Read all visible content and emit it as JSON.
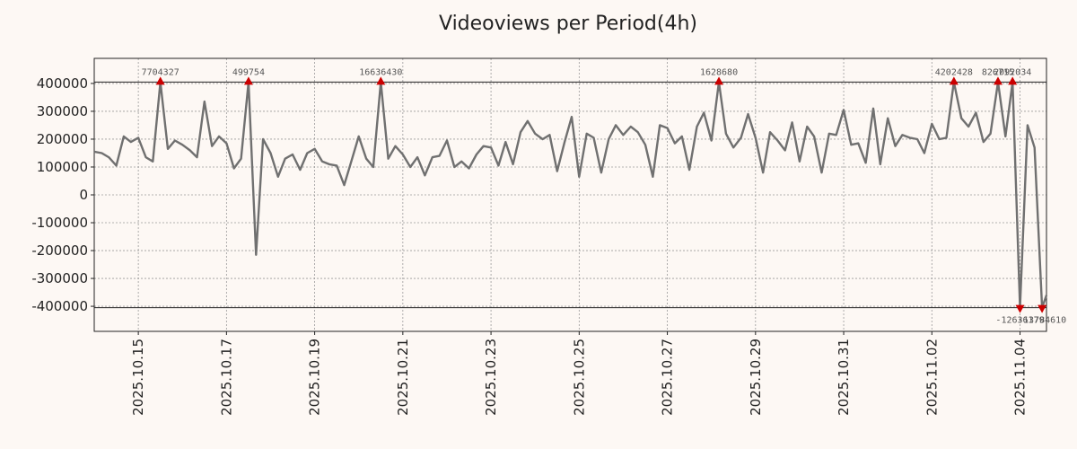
{
  "chart_data": {
    "type": "line",
    "title": "Videoviews per Period(4h)",
    "xlabel": "",
    "ylabel": "",
    "grid": true,
    "xlim": [
      0,
      21.6
    ],
    "ylim": [
      -490000,
      490000
    ],
    "threshold_lines": [
      405000,
      -405000
    ],
    "x_ticks": [
      {
        "x": 1,
        "label": "2025.10.15"
      },
      {
        "x": 3,
        "label": "2025.10.17"
      },
      {
        "x": 5,
        "label": "2025.10.19"
      },
      {
        "x": 7,
        "label": "2025.10.21"
      },
      {
        "x": 9,
        "label": "2025.10.23"
      },
      {
        "x": 11,
        "label": "2025.10.25"
      },
      {
        "x": 13,
        "label": "2025.10.27"
      },
      {
        "x": 15,
        "label": "2025.10.29"
      },
      {
        "x": 17,
        "label": "2025.10.31"
      },
      {
        "x": 19,
        "label": "2025.11.02"
      },
      {
        "x": 21,
        "label": "2025.11.04"
      }
    ],
    "y_ticks": [
      {
        "y": 400000,
        "label": "400000"
      },
      {
        "y": 300000,
        "label": "300000"
      },
      {
        "y": 200000,
        "label": "200000"
      },
      {
        "y": 100000,
        "label": "100000"
      },
      {
        "y": 0,
        "label": "0"
      },
      {
        "y": -100000,
        "label": "-100000"
      },
      {
        "y": -200000,
        "label": "-200000"
      },
      {
        "y": -300000,
        "label": "-300000"
      },
      {
        "y": -400000,
        "label": "-400000"
      }
    ],
    "series": [
      {
        "name": "Videoviews",
        "color": "#707070",
        "points": [
          [
            0.0,
            155000
          ],
          [
            0.17,
            150000
          ],
          [
            0.33,
            135000
          ],
          [
            0.5,
            105000
          ],
          [
            0.67,
            210000
          ],
          [
            0.83,
            190000
          ],
          [
            1.0,
            205000
          ],
          [
            1.17,
            135000
          ],
          [
            1.33,
            120000
          ],
          [
            1.5,
            405000
          ],
          [
            1.67,
            165000
          ],
          [
            1.83,
            195000
          ],
          [
            2.0,
            180000
          ],
          [
            2.17,
            160000
          ],
          [
            2.33,
            135000
          ],
          [
            2.5,
            335000
          ],
          [
            2.67,
            175000
          ],
          [
            2.83,
            210000
          ],
          [
            3.0,
            185000
          ],
          [
            3.17,
            95000
          ],
          [
            3.33,
            130000
          ],
          [
            3.5,
            405000
          ],
          [
            3.67,
            -215000
          ],
          [
            3.83,
            200000
          ],
          [
            4.0,
            150000
          ],
          [
            4.17,
            65000
          ],
          [
            4.33,
            130000
          ],
          [
            4.5,
            145000
          ],
          [
            4.67,
            90000
          ],
          [
            4.83,
            150000
          ],
          [
            5.0,
            165000
          ],
          [
            5.17,
            120000
          ],
          [
            5.33,
            110000
          ],
          [
            5.5,
            105000
          ],
          [
            5.67,
            35000
          ],
          [
            5.83,
            120000
          ],
          [
            6.0,
            210000
          ],
          [
            6.17,
            130000
          ],
          [
            6.33,
            100000
          ],
          [
            6.5,
            405000
          ],
          [
            6.67,
            130000
          ],
          [
            6.83,
            175000
          ],
          [
            7.0,
            145000
          ],
          [
            7.17,
            100000
          ],
          [
            7.33,
            135000
          ],
          [
            7.5,
            70000
          ],
          [
            7.67,
            135000
          ],
          [
            7.83,
            140000
          ],
          [
            8.0,
            195000
          ],
          [
            8.17,
            100000
          ],
          [
            8.33,
            120000
          ],
          [
            8.5,
            95000
          ],
          [
            8.67,
            145000
          ],
          [
            8.83,
            175000
          ],
          [
            9.0,
            170000
          ],
          [
            9.17,
            105000
          ],
          [
            9.33,
            190000
          ],
          [
            9.5,
            110000
          ],
          [
            9.67,
            225000
          ],
          [
            9.83,
            265000
          ],
          [
            10.0,
            220000
          ],
          [
            10.17,
            200000
          ],
          [
            10.33,
            215000
          ],
          [
            10.5,
            85000
          ],
          [
            10.67,
            190000
          ],
          [
            10.83,
            280000
          ],
          [
            11.0,
            65000
          ],
          [
            11.17,
            220000
          ],
          [
            11.33,
            205000
          ],
          [
            11.5,
            80000
          ],
          [
            11.67,
            200000
          ],
          [
            11.83,
            250000
          ],
          [
            12.0,
            215000
          ],
          [
            12.17,
            245000
          ],
          [
            12.33,
            225000
          ],
          [
            12.5,
            180000
          ],
          [
            12.67,
            65000
          ],
          [
            12.83,
            250000
          ],
          [
            13.0,
            240000
          ],
          [
            13.17,
            185000
          ],
          [
            13.33,
            210000
          ],
          [
            13.5,
            90000
          ],
          [
            13.67,
            245000
          ],
          [
            13.83,
            295000
          ],
          [
            14.0,
            195000
          ],
          [
            14.17,
            405000
          ],
          [
            14.33,
            220000
          ],
          [
            14.5,
            170000
          ],
          [
            14.67,
            205000
          ],
          [
            14.83,
            290000
          ],
          [
            15.0,
            205000
          ],
          [
            15.17,
            80000
          ],
          [
            15.33,
            225000
          ],
          [
            15.5,
            195000
          ],
          [
            15.67,
            160000
          ],
          [
            15.83,
            260000
          ],
          [
            16.0,
            120000
          ],
          [
            16.17,
            245000
          ],
          [
            16.33,
            210000
          ],
          [
            16.5,
            80000
          ],
          [
            16.67,
            220000
          ],
          [
            16.83,
            215000
          ],
          [
            17.0,
            305000
          ],
          [
            17.17,
            180000
          ],
          [
            17.33,
            185000
          ],
          [
            17.5,
            115000
          ],
          [
            17.67,
            310000
          ],
          [
            17.83,
            110000
          ],
          [
            18.0,
            275000
          ],
          [
            18.17,
            175000
          ],
          [
            18.33,
            215000
          ],
          [
            18.5,
            205000
          ],
          [
            18.67,
            200000
          ],
          [
            18.83,
            150000
          ],
          [
            19.0,
            255000
          ],
          [
            19.17,
            200000
          ],
          [
            19.33,
            205000
          ],
          [
            19.5,
            405000
          ],
          [
            19.67,
            275000
          ],
          [
            19.83,
            245000
          ],
          [
            20.0,
            295000
          ],
          [
            20.17,
            190000
          ],
          [
            20.33,
            220000
          ],
          [
            20.5,
            405000
          ],
          [
            20.67,
            210000
          ],
          [
            20.83,
            405000
          ],
          [
            21.0,
            -405000
          ],
          [
            21.17,
            250000
          ],
          [
            21.33,
            170000
          ],
          [
            21.5,
            -405000
          ],
          [
            21.6,
            -360000
          ]
        ]
      }
    ],
    "clipped_markers": [
      {
        "x": 1.5,
        "y": 405000,
        "direction": "up",
        "label": "7704327",
        "value": 7704327
      },
      {
        "x": 3.5,
        "y": 405000,
        "direction": "up",
        "label": "499754",
        "value": 499754
      },
      {
        "x": 6.5,
        "y": 405000,
        "direction": "up",
        "label": "16636430",
        "value": 16636430
      },
      {
        "x": 14.17,
        "y": 405000,
        "direction": "up",
        "label": "1628680",
        "value": 1628680
      },
      {
        "x": 19.5,
        "y": 405000,
        "direction": "up",
        "label": "4202428",
        "value": 4202428
      },
      {
        "x": 20.5,
        "y": 405000,
        "direction": "up",
        "label": "826715",
        "value": 826715
      },
      {
        "x": 20.83,
        "y": 405000,
        "direction": "up",
        "label": "2092034",
        "value": 2092034
      },
      {
        "x": 21.0,
        "y": -405000,
        "direction": "down",
        "label": "-12636179",
        "value": -12636179
      },
      {
        "x": 21.5,
        "y": -405000,
        "direction": "down",
        "label": "-13784610",
        "value": -13784610
      }
    ],
    "marker_color": "#cc0000"
  }
}
